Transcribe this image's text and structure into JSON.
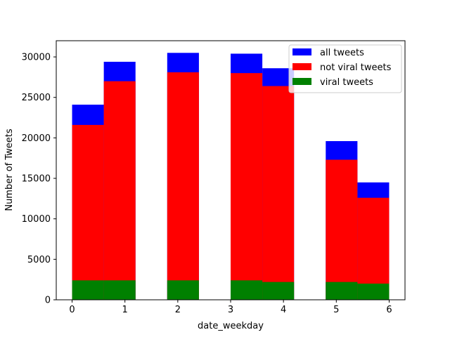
{
  "chart_data": {
    "type": "bar",
    "subtype": "overlaid-histogram",
    "xlabel": "date_weekday",
    "ylabel": "Number of Tweets",
    "xlim": [
      -0.3,
      6.3
    ],
    "ylim": [
      0,
      32000
    ],
    "xticks": [
      "0",
      "1",
      "2",
      "3",
      "4",
      "5",
      "6"
    ],
    "yticks": [
      "0",
      "5000",
      "10000",
      "15000",
      "20000",
      "25000",
      "30000"
    ],
    "bin_edges": [
      0.0,
      0.6,
      1.2,
      1.8,
      2.4,
      3.0,
      3.6,
      4.2,
      4.8,
      5.4,
      6.0
    ],
    "series": [
      {
        "name": "all tweets",
        "color": "#0000ff",
        "values": [
          24100,
          29400,
          0,
          30500,
          0,
          30400,
          28600,
          0,
          19600,
          14500
        ]
      },
      {
        "name": "not viral tweets",
        "color": "#ff0000",
        "values": [
          21600,
          27000,
          0,
          28100,
          0,
          28000,
          26400,
          0,
          17300,
          12600
        ]
      },
      {
        "name": "viral tweets",
        "color": "#008000",
        "values": [
          2400,
          2400,
          0,
          2400,
          0,
          2400,
          2200,
          0,
          2200,
          2000
        ]
      }
    ],
    "legend": {
      "position": "top-right"
    }
  }
}
